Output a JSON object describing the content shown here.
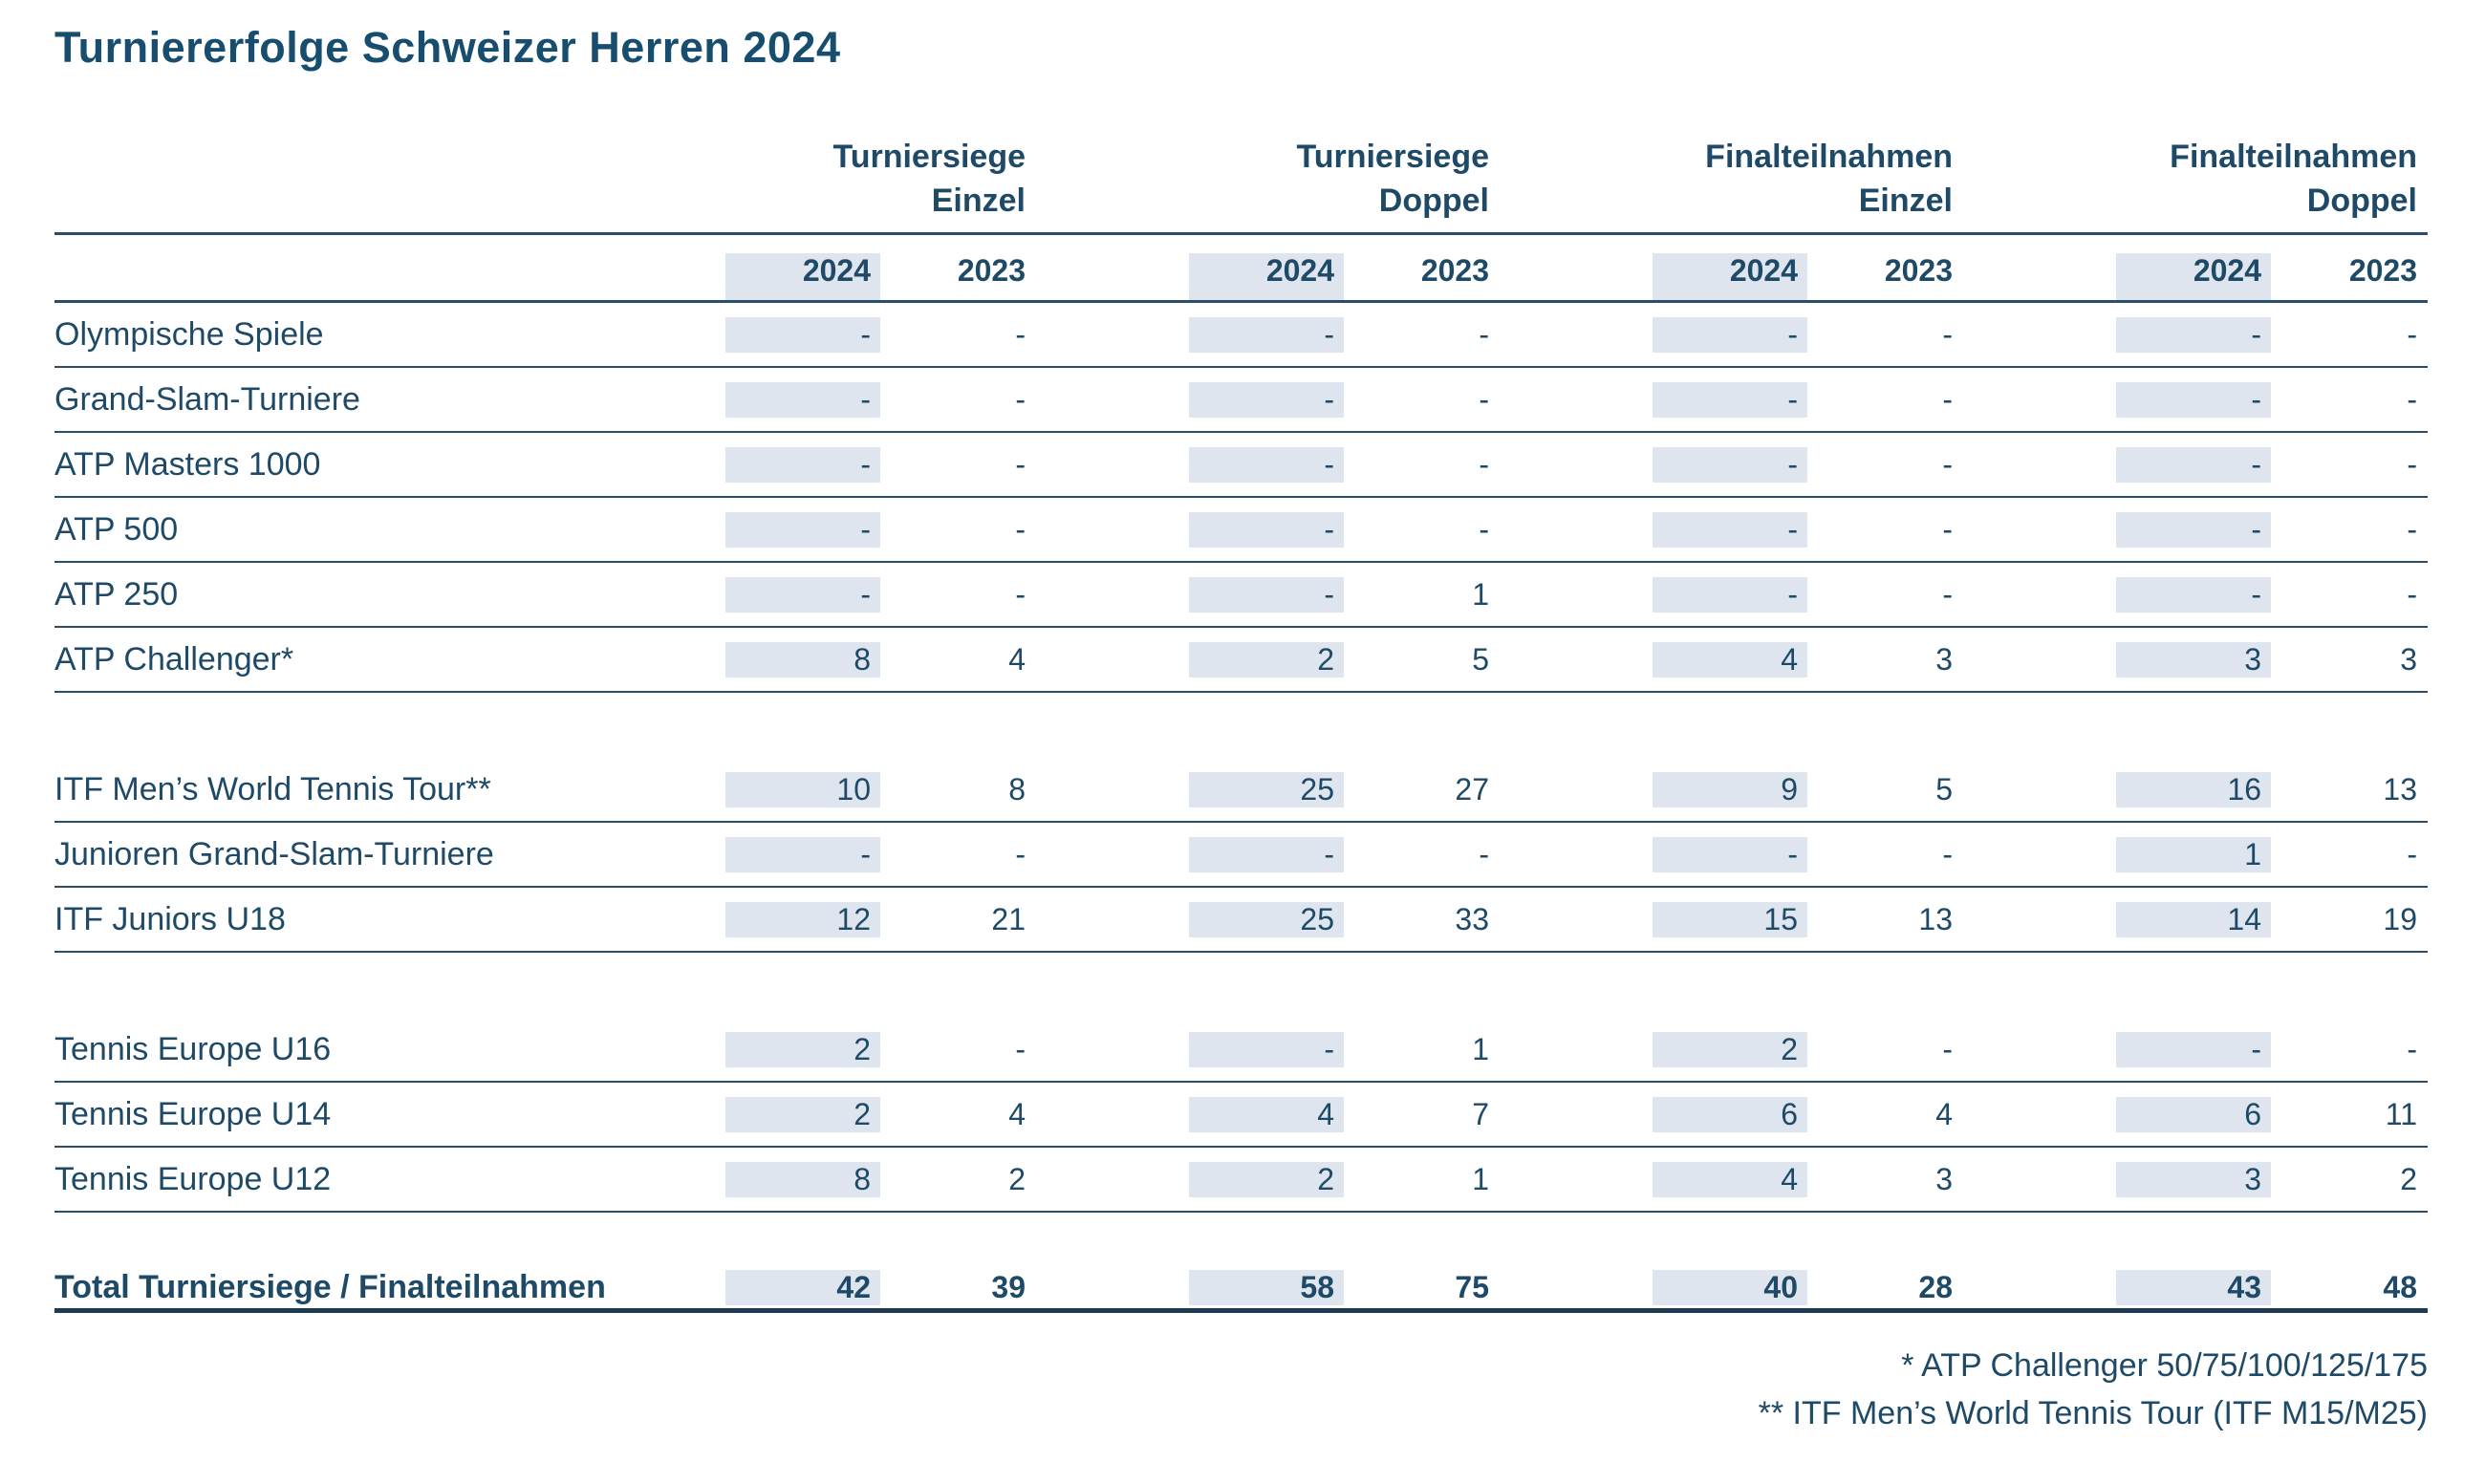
{
  "title": "Turniererfolge Schweizer Herren 2024",
  "colors": {
    "ink": "#1e4a68",
    "title": "#174d6f",
    "line": "#2b4d68",
    "line_heavy": "#1c3a52",
    "band": "#dfe5ef"
  },
  "table": {
    "groups": [
      {
        "line1": "Turniersiege",
        "line2": "Einzel"
      },
      {
        "line1": "Turniersiege",
        "line2": "Doppel"
      },
      {
        "line1": "Finalteilnahmen",
        "line2": "Einzel"
      },
      {
        "line1": "Finalteilnahmen",
        "line2": "Doppel"
      }
    ],
    "year_headers": [
      "2024",
      "2023",
      "2024",
      "2023",
      "2024",
      "2023",
      "2024",
      "2023"
    ],
    "rows": [
      {
        "label": "Olympische Spiele",
        "values": [
          "-",
          "-",
          "-",
          "-",
          "-",
          "-",
          "-",
          "-"
        ]
      },
      {
        "label": "Grand-Slam-Turniere",
        "values": [
          "-",
          "-",
          "-",
          "-",
          "-",
          "-",
          "-",
          "-"
        ]
      },
      {
        "label": "ATP Masters 1000",
        "values": [
          "-",
          "-",
          "-",
          "-",
          "-",
          "-",
          "-",
          "-"
        ]
      },
      {
        "label": "ATP 500",
        "values": [
          "-",
          "-",
          "-",
          "-",
          "-",
          "-",
          "-",
          "-"
        ]
      },
      {
        "label": "ATP 250",
        "values": [
          "-",
          "-",
          "-",
          "1",
          "-",
          "-",
          "-",
          "-"
        ]
      },
      {
        "label": "ATP Challenger*",
        "values": [
          "8",
          "4",
          "2",
          "5",
          "4",
          "3",
          "3",
          "3"
        ]
      },
      {
        "spacer": true
      },
      {
        "label": "ITF Men’s World Tennis Tour**",
        "values": [
          "10",
          "8",
          "25",
          "27",
          "9",
          "5",
          "16",
          "13"
        ]
      },
      {
        "label": "Junioren Grand-Slam-Turniere",
        "values": [
          "-",
          "-",
          "-",
          "-",
          "-",
          "-",
          "1",
          "-"
        ]
      },
      {
        "label": "ITF Juniors U18",
        "values": [
          "12",
          "21",
          "25",
          "33",
          "15",
          "13",
          "14",
          "19"
        ]
      },
      {
        "spacer": true
      },
      {
        "label": "Tennis Europe U16",
        "values": [
          "2",
          "-",
          "-",
          "1",
          "2",
          "-",
          "-",
          "-"
        ]
      },
      {
        "label": "Tennis Europe U14",
        "values": [
          "2",
          "4",
          "4",
          "7",
          "6",
          "4",
          "6",
          "11"
        ]
      },
      {
        "label": "Tennis Europe U12",
        "values": [
          "8",
          "2",
          "2",
          "1",
          "4",
          "3",
          "3",
          "2"
        ]
      },
      {
        "spacer": true
      },
      {
        "label": "Total Turniersiege / Finalteilnahmen",
        "values": [
          "42",
          "39",
          "58",
          "75",
          "40",
          "28",
          "43",
          "48"
        ],
        "total": true
      }
    ]
  },
  "footnotes": [
    "* ATP Challenger 50/75/100/125/175",
    "** ITF Men’s World Tennis Tour (ITF M15/M25)"
  ]
}
